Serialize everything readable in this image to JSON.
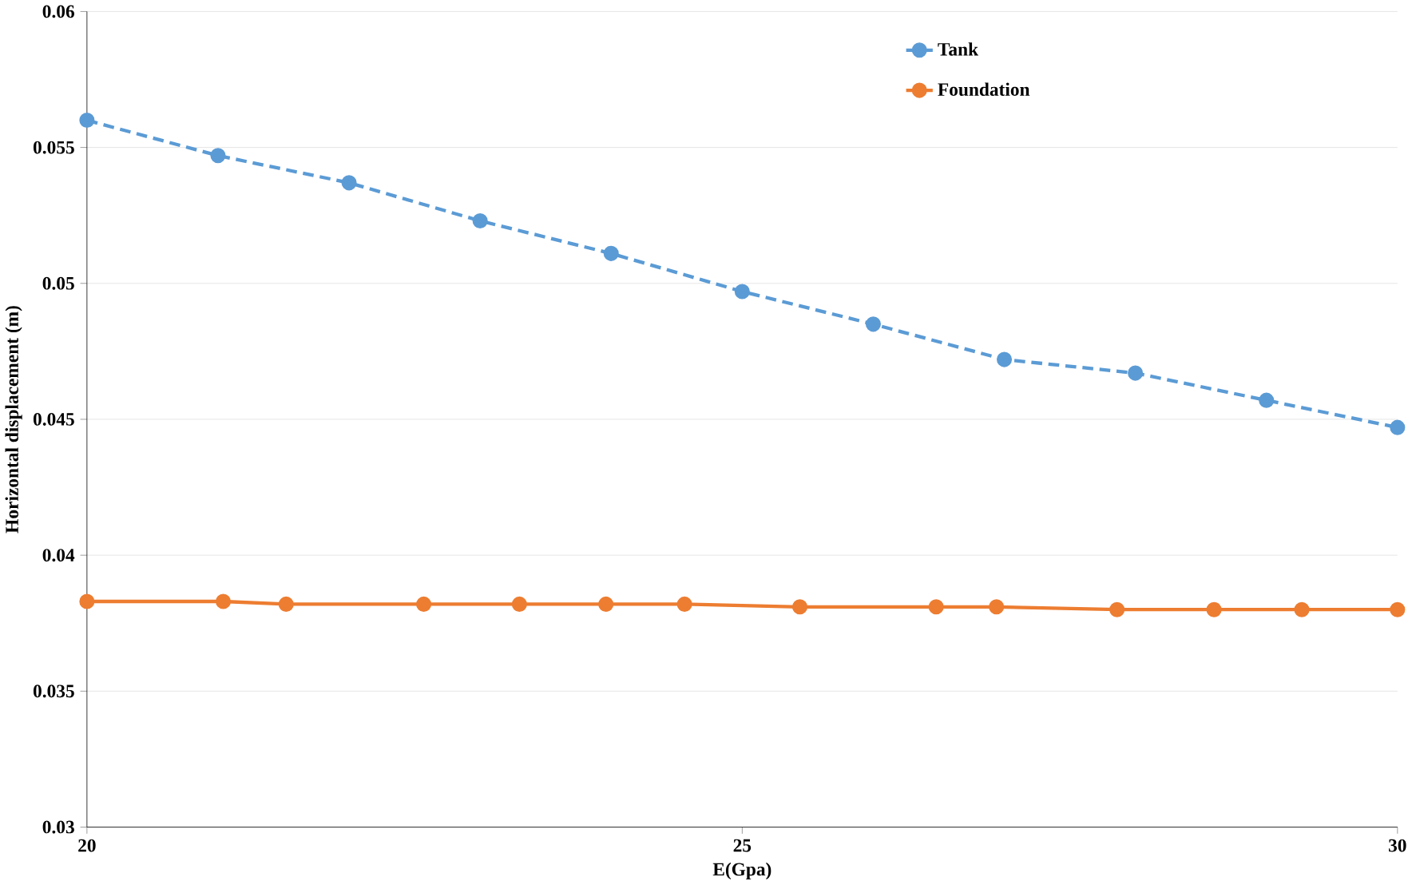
{
  "chart_data": {
    "type": "line",
    "xlabel": "E(Gpa)",
    "ylabel": "Horizontal displacement (m)",
    "xlim": [
      20,
      30
    ],
    "ylim": [
      0.03,
      0.06
    ],
    "xticks": [
      20,
      25,
      30
    ],
    "yticks": [
      0.03,
      0.035,
      0.04,
      0.045,
      0.05,
      0.055,
      0.06
    ],
    "grid": "y",
    "legend": "top right",
    "marker": "circle",
    "series": [
      {
        "name": "Tank",
        "color": "#5b9bd5",
        "line_style": "dashed",
        "x": [
          20,
          21,
          22,
          23,
          24,
          25,
          26,
          27,
          28,
          29,
          30
        ],
        "values": [
          0.056,
          0.0547,
          0.0537,
          0.0523,
          0.0511,
          0.0497,
          0.0485,
          0.0472,
          0.0467,
          0.0457,
          0.0447
        ]
      },
      {
        "name": "Foundation",
        "color": "#ed7d31",
        "line_style": "solid",
        "x": [
          20,
          21.04,
          21.52,
          22.57,
          23.3,
          23.96,
          24.56,
          25.44,
          26.48,
          26.94,
          27.86,
          28.6,
          29.27,
          30
        ],
        "values": [
          0.0383,
          0.0383,
          0.0382,
          0.0382,
          0.0382,
          0.0382,
          0.0382,
          0.0381,
          0.0381,
          0.0381,
          0.038,
          0.038,
          0.038,
          0.038
        ]
      }
    ]
  }
}
